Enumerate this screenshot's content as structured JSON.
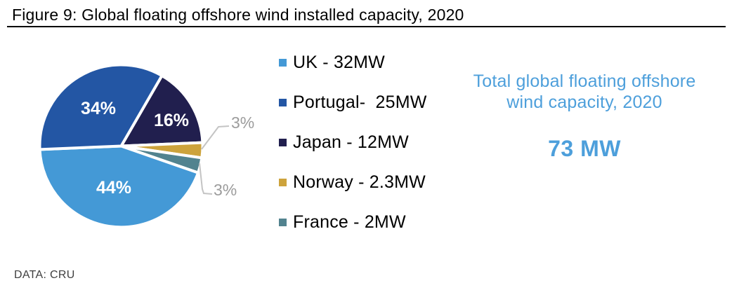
{
  "figure": {
    "title": "Figure 9: Global floating offshore wind installed capacity, 2020",
    "source": "DATA: CRU"
  },
  "colors": {
    "uk": "#4499D6",
    "portugal": "#2356A4",
    "japan": "#211F4E",
    "norway": "#CDA33C",
    "france": "#52838F",
    "accent_blue": "#4D9FDB",
    "inside_label": "#FFFFFF",
    "outside_label_gray": "#9C9C9C",
    "leader_line_gray": "#C4C4C4"
  },
  "chart_data": {
    "type": "pie",
    "title": "Global floating offshore wind installed capacity, 2020",
    "unit": "MW",
    "total_mw": 73,
    "direction": "clockwise",
    "start_angle_deg": 30,
    "slices": [
      {
        "label": "Japan",
        "value_mw": 12,
        "percent": 16,
        "percent_label": "16%",
        "color": "#211F4E",
        "label_style": "inside-white"
      },
      {
        "label": "Norway",
        "value_mw": 2.3,
        "percent": 3,
        "percent_label": "3%",
        "color": "#CDA33C",
        "label_style": "outside-gray"
      },
      {
        "label": "France",
        "value_mw": 2,
        "percent": 3,
        "percent_label": "3%",
        "color": "#52838F",
        "label_style": "outside-gray"
      },
      {
        "label": "UK",
        "value_mw": 32,
        "percent": 44,
        "percent_label": "44%",
        "color": "#4499D6",
        "label_style": "inside-white"
      },
      {
        "label": "Portugal",
        "value_mw": 25,
        "percent": 34,
        "percent_label": "34%",
        "color": "#2356A4",
        "label_style": "inside-white"
      }
    ],
    "legend_position": "right-of-pie",
    "legend": [
      {
        "key": "uk",
        "label": "UK - 32MW",
        "color": "#4499D6"
      },
      {
        "key": "portugal",
        "label": "Portugal-  25MW",
        "color": "#2356A4"
      },
      {
        "key": "japan",
        "label": "Japan - 12MW",
        "color": "#211F4E"
      },
      {
        "key": "norway",
        "label": "Norway - 2.3MW",
        "color": "#CDA33C"
      },
      {
        "key": "france",
        "label": "France - 2MW",
        "color": "#52838F"
      }
    ]
  },
  "summary": {
    "heading_line1": "Total global floating offshore",
    "heading_line2": "wind capacity, 2020",
    "value": "73 MW"
  }
}
